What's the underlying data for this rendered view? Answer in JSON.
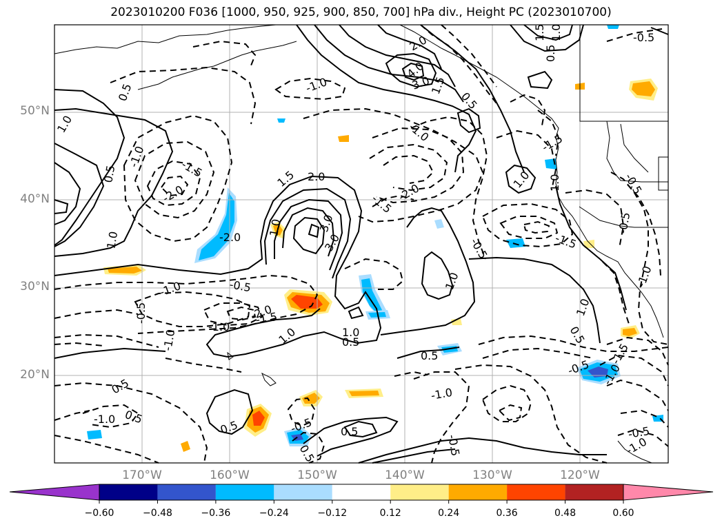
{
  "title": "2023010200 F036 [1000, 950, 925, 900, 850, 700] hPa div., Height PC (2023010700)",
  "lat_labels": [
    "50°N",
    "40°N",
    "30°N",
    "20°N"
  ],
  "lon_labels": [
    "170°W",
    "160°W",
    "150°W",
    "140°W",
    "130°W",
    "120°W"
  ],
  "colorbar": {
    "ticks": [
      "−0.60",
      "−0.48",
      "−0.36",
      "−0.24",
      "−0.12",
      "0.12",
      "0.24",
      "0.36",
      "0.48",
      "0.60"
    ],
    "colors": [
      "#9933cc",
      "#000088",
      "#3355cc",
      "#00bbff",
      "#aaddff",
      "#ffffff",
      "#ffee88",
      "#ffaa00",
      "#ff4400",
      "#b22222",
      "#ff88aa"
    ]
  },
  "contour_labels": [
    "0.5",
    "1.0",
    "1.5",
    "2.0",
    "2.5",
    "3.0",
    "4.0",
    "-0.5",
    "-1.0",
    "-1.5",
    "-2.0"
  ]
}
